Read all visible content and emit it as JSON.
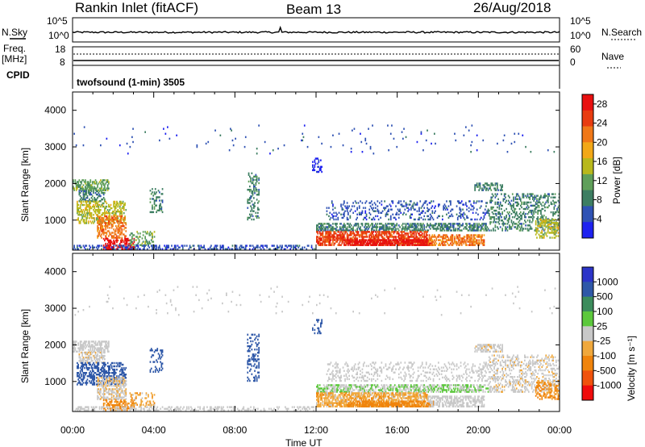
{
  "header": {
    "station": "Rankin Inlet (fitACF)",
    "beam": "Beam 13",
    "date": "26/Aug/2018"
  },
  "nsky_panel": {
    "left_label": "N.Sky",
    "left_ticks": [
      "10^5",
      "10^0"
    ],
    "right_ticks": [
      "10^5",
      "10^0"
    ],
    "right_label": "N.Search"
  },
  "freq_panel": {
    "left_label_line1": "Freq.",
    "left_label_line2": "[MHz]",
    "left_ticks": [
      "18",
      "8"
    ],
    "right_ticks": [
      "60",
      "0"
    ],
    "right_label": "Nave",
    "cpid_label": "CPID",
    "cpid_text": "twofsound (1-min) 3505"
  },
  "colors": {
    "power": [
      "#1e22f0",
      "#2f52b4",
      "#3d7e62",
      "#5f9f5a",
      "#b8b81c",
      "#f2a818",
      "#f07818",
      "#e83c10",
      "#e81010"
    ],
    "velocity": [
      "#f00c0c",
      "#f0520c",
      "#f0840c",
      "#f0a83c",
      "#c8c8c8",
      "#5cc83c",
      "#3c8c5c",
      "#2f58a8",
      "#2c34c8"
    ]
  },
  "chart_data": [
    {
      "type": "heatmap",
      "name": "power-panel",
      "ylabel": "Slant Range [km]",
      "x_ticks": [
        "00:00",
        "04:00",
        "08:00",
        "12:00",
        "16:00",
        "20:00",
        "00:00"
      ],
      "y_ticks": [
        "1000",
        "2000",
        "3000",
        "4000"
      ],
      "ylim": [
        180,
        4500
      ],
      "colorbar_label": "Power [dB]",
      "colorbar_ticks": [
        "4",
        "8",
        "12",
        "16",
        "20",
        "24",
        "28"
      ],
      "colorbar_range": [
        0,
        30
      ]
    },
    {
      "type": "heatmap",
      "name": "velocity-panel",
      "ylabel": "Slant Range [km]",
      "xlabel": "Time UT",
      "x_ticks": [
        "00:00",
        "04:00",
        "08:00",
        "12:00",
        "16:00",
        "20:00",
        "00:00"
      ],
      "y_ticks": [
        "1000",
        "2000",
        "3000",
        "4000"
      ],
      "ylim": [
        180,
        4500
      ],
      "colorbar_label": "Velocity [m s⁻¹]",
      "colorbar_ticks": [
        "1000",
        "500",
        "100",
        "25",
        "-25",
        "-100",
        "-500",
        "-1000"
      ]
    }
  ]
}
